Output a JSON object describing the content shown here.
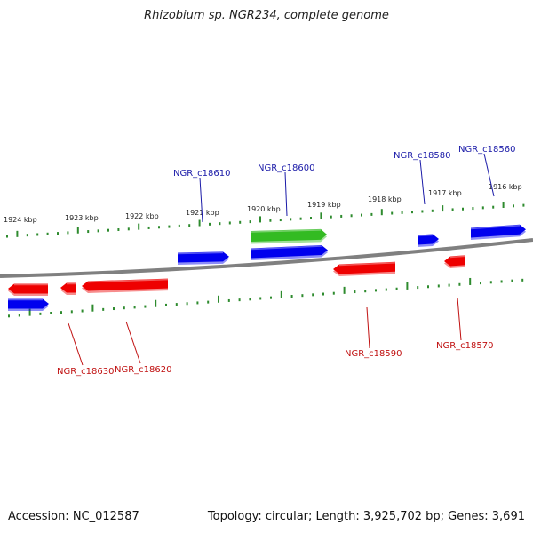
{
  "genome": {
    "title": "Rhizobium sp. NGR234, complete genome",
    "accession_text": "Accession: NC_012587",
    "summary_text": "Topology: circular; Length: 3,925,702 bp; Genes: 3,691"
  },
  "ruler": {
    "labels": [
      "1924 kbp",
      "1923 kbp",
      "1922 kbp",
      "1921 kbp",
      "1920 kbp",
      "1919 kbp",
      "1918 kbp",
      "1917 kbp",
      "1916 kbp"
    ]
  },
  "genes": [
    {
      "label": "NGR_c18560",
      "strand": "forward"
    },
    {
      "label": "NGR_c18570",
      "strand": "reverse"
    },
    {
      "label": "NGR_c18580",
      "strand": "forward"
    },
    {
      "label": "NGR_c18590",
      "strand": "reverse"
    },
    {
      "label": "NGR_c18600",
      "strand": "forward"
    },
    {
      "label": "NGR_c18610",
      "strand": "forward"
    },
    {
      "label": "NGR_c18620",
      "strand": "reverse"
    },
    {
      "label": "NGR_c18630",
      "strand": "reverse"
    }
  ],
  "colors": {
    "forward": "#0000ee",
    "reverse": "#ee0000",
    "highlight": "#33bb22",
    "backbone": "#808080",
    "ticks": "#2e8b2e",
    "forward_label": "#1a1aa8",
    "reverse_label": "#c01010"
  }
}
